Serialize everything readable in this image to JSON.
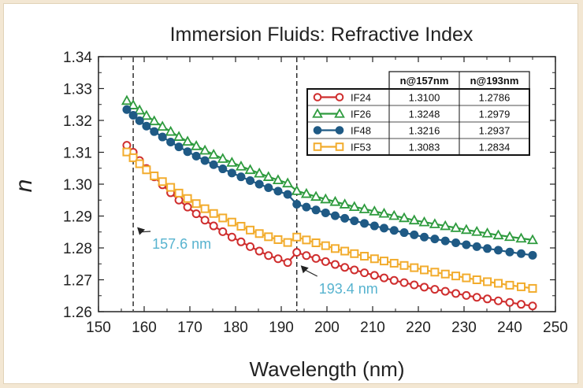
{
  "chart_data": {
    "type": "line",
    "title": "Immersion Fluids: Refractive Index",
    "xlabel": "Wavelength (nm)",
    "ylabel": "n",
    "xlim": [
      150,
      250
    ],
    "ylim": [
      1.26,
      1.34
    ],
    "xticks": [
      150,
      160,
      170,
      180,
      190,
      200,
      210,
      220,
      230,
      240,
      250
    ],
    "yticks": [
      1.26,
      1.27,
      1.28,
      1.29,
      1.3,
      1.31,
      1.32,
      1.33,
      1.34
    ],
    "x": [
      156.2,
      157.6,
      159.0,
      160.5,
      162.2,
      164.0,
      165.8,
      167.6,
      169.5,
      171.4,
      173.3,
      175.2,
      177.2,
      179.2,
      181.2,
      183.2,
      185.2,
      187.2,
      189.3,
      191.4,
      193.4,
      195.5,
      197.6,
      199.7,
      201.8,
      203.9,
      206.0,
      208.2,
      210.4,
      212.5,
      214.7,
      216.9,
      219.1,
      221.3,
      223.6,
      225.9,
      228.2,
      230.5,
      232.8,
      235.1,
      237.5,
      240.0,
      242.5,
      245.0
    ],
    "series": [
      {
        "name": "IF24",
        "color": "#cf2e2e",
        "marker": "circle-open",
        "values": [
          1.3122,
          1.31,
          1.3074,
          1.3049,
          1.3023,
          1.2998,
          1.2973,
          1.295,
          1.2928,
          1.2907,
          1.2887,
          1.2869,
          1.2851,
          1.2834,
          1.2819,
          1.2804,
          1.279,
          1.2776,
          1.2766,
          1.2754,
          1.2786,
          1.2776,
          1.2767,
          1.2757,
          1.2748,
          1.2739,
          1.2731,
          1.2722,
          1.2714,
          1.2706,
          1.2698,
          1.2691,
          1.2684,
          1.2677,
          1.267,
          1.2664,
          1.2657,
          1.2651,
          1.2645,
          1.264,
          1.2634,
          1.2629,
          1.2623,
          1.2618
        ]
      },
      {
        "name": "IF26",
        "color": "#2e9b3e",
        "marker": "triangle-open",
        "values": [
          1.3262,
          1.3248,
          1.3232,
          1.3215,
          1.3198,
          1.3181,
          1.3165,
          1.3149,
          1.3134,
          1.312,
          1.3106,
          1.3093,
          1.308,
          1.3068,
          1.3056,
          1.3045,
          1.3034,
          1.3023,
          1.3013,
          1.3003,
          1.2979,
          1.297,
          1.2961,
          1.2953,
          1.2945,
          1.2937,
          1.2929,
          1.2922,
          1.2915,
          1.2908,
          1.2901,
          1.2894,
          1.2887,
          1.2881,
          1.2875,
          1.2869,
          1.2863,
          1.2857,
          1.2851,
          1.2846,
          1.284,
          1.2835,
          1.283,
          1.2825
        ]
      },
      {
        "name": "IF48",
        "color": "#1f5a85",
        "marker": "circle-filled",
        "values": [
          1.3234,
          1.3216,
          1.3199,
          1.3182,
          1.3165,
          1.3148,
          1.3132,
          1.3117,
          1.3102,
          1.3088,
          1.3074,
          1.3061,
          1.3048,
          1.3035,
          1.3023,
          1.3011,
          1.3,
          1.2989,
          1.2978,
          1.2968,
          1.2937,
          1.2928,
          1.2919,
          1.291,
          1.2901,
          1.2893,
          1.2885,
          1.2877,
          1.2869,
          1.2862,
          1.2855,
          1.2848,
          1.2841,
          1.2834,
          1.2828,
          1.2822,
          1.2816,
          1.281,
          1.2804,
          1.2798,
          1.2793,
          1.2787,
          1.2782,
          1.2777
        ]
      },
      {
        "name": "IF53",
        "color": "#f2ac2d",
        "marker": "square-open",
        "values": [
          1.3101,
          1.3083,
          1.3064,
          1.3045,
          1.3026,
          1.3008,
          1.299,
          1.2972,
          1.2955,
          1.2939,
          1.2923,
          1.2908,
          1.2894,
          1.2881,
          1.2868,
          1.2856,
          1.2845,
          1.2835,
          1.2826,
          1.2817,
          1.2834,
          1.2825,
          1.2816,
          1.2807,
          1.2798,
          1.279,
          1.2782,
          1.2774,
          1.2766,
          1.2759,
          1.2752,
          1.2745,
          1.2738,
          1.2731,
          1.2724,
          1.2718,
          1.2712,
          1.2706,
          1.27,
          1.2694,
          1.2689,
          1.2683,
          1.2678,
          1.2673
        ]
      }
    ],
    "reference_lines": [
      {
        "x": 157.6,
        "label": "157.6 nm"
      },
      {
        "x": 193.4,
        "label": "193.4 nm"
      }
    ],
    "legend_table": {
      "headers": [
        "n@157nm",
        "n@193nm"
      ],
      "rows": [
        {
          "name": "IF24",
          "n157": "1.3100",
          "n193": "1.2786"
        },
        {
          "name": "IF26",
          "n157": "1.3248",
          "n193": "1.2979"
        },
        {
          "name": "IF48",
          "n157": "1.3216",
          "n193": "1.2937"
        },
        {
          "name": "IF53",
          "n157": "1.3083",
          "n193": "1.2834"
        }
      ],
      "placement": "top-right"
    },
    "grid": false
  }
}
